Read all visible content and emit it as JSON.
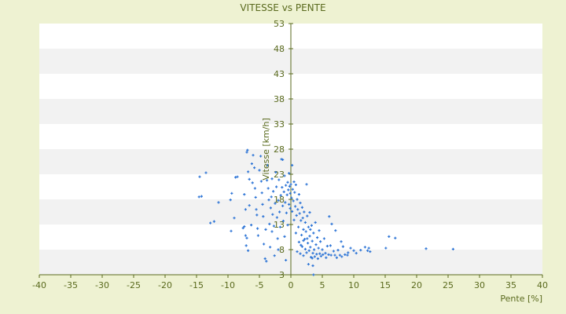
{
  "chart_data": {
    "type": "scatter",
    "title": "VITESSE vs PENTE",
    "xlabel": "Pente [%]",
    "ylabel": "Vitesse [km/h]",
    "xlim": [
      -40,
      40
    ],
    "ylim": [
      3,
      53
    ],
    "xticks": [
      "-40",
      "-35",
      "-30",
      "-25",
      "-20",
      "-15",
      "-10",
      "-5",
      "0",
      "5",
      "10",
      "15",
      "20",
      "25",
      "30",
      "35",
      "40"
    ],
    "yticks": [
      "3",
      "8",
      "13",
      "18",
      "23",
      "28",
      "33",
      "38",
      "43",
      "48",
      "53"
    ],
    "grid": "horizontal bands",
    "legend": "none",
    "colors": {
      "background": "#eef2d2",
      "band_light": "#ffffff",
      "band_dark": "#f2f2f2",
      "axis": "#5a6a1e",
      "marker": "#2e75d6"
    },
    "series": [
      {
        "values": [
          [
            -14.5,
            22.5
          ],
          [
            -13.5,
            23.3
          ],
          [
            -14.6,
            18.5
          ],
          [
            -14.2,
            18.6
          ],
          [
            -12.8,
            13.3
          ],
          [
            -12.2,
            13.6
          ],
          [
            -11.5,
            17.4
          ],
          [
            -9.5,
            11.7
          ],
          [
            -9.6,
            17.9
          ],
          [
            -9.4,
            19.2
          ],
          [
            -9.0,
            14.3
          ],
          [
            -8.8,
            22.4
          ],
          [
            -8.5,
            22.5
          ],
          [
            -7.6,
            12.3
          ],
          [
            -7.4,
            12.6
          ],
          [
            -7.4,
            19.0
          ],
          [
            -7.2,
            16.0
          ],
          [
            -7.2,
            10.8
          ],
          [
            -7.0,
            10.3
          ],
          [
            -7.1,
            8.8
          ],
          [
            -7.0,
            27.4
          ],
          [
            -6.9,
            27.8
          ],
          [
            -6.8,
            23.5
          ],
          [
            -6.6,
            22.0
          ],
          [
            -6.8,
            7.8
          ],
          [
            -6.6,
            16.8
          ],
          [
            -6.3,
            12.9
          ],
          [
            -6.1,
            21.3
          ],
          [
            -6.2,
            25.1
          ],
          [
            -6.0,
            26.8
          ],
          [
            -5.8,
            24.3
          ],
          [
            -5.7,
            20.2
          ],
          [
            -5.6,
            18.4
          ],
          [
            -5.5,
            16.0
          ],
          [
            -5.4,
            14.9
          ],
          [
            -5.3,
            12.2
          ],
          [
            -5.2,
            10.8
          ],
          [
            -5.0,
            23.8
          ],
          [
            -4.8,
            26.6
          ],
          [
            -4.7,
            21.6
          ],
          [
            -4.6,
            19.3
          ],
          [
            -4.5,
            17.0
          ],
          [
            -4.4,
            14.6
          ],
          [
            -4.3,
            9.1
          ],
          [
            -4.1,
            6.2
          ],
          [
            -4.0,
            12.0
          ],
          [
            -3.9,
            5.7
          ],
          [
            -3.8,
            21.8
          ],
          [
            -3.7,
            24.8
          ],
          [
            -3.6,
            20.2
          ],
          [
            -3.5,
            17.9
          ],
          [
            -3.4,
            13.1
          ],
          [
            -3.3,
            8.5
          ],
          [
            -3.2,
            16.3
          ],
          [
            -3.1,
            18.5
          ],
          [
            -3.0,
            22.1
          ],
          [
            -3.0,
            11.6
          ],
          [
            -2.9,
            15.0
          ],
          [
            -2.8,
            19.6
          ],
          [
            -2.7,
            12.7
          ],
          [
            -2.6,
            6.8
          ],
          [
            -2.5,
            17.2
          ],
          [
            -2.4,
            23.4
          ],
          [
            -2.3,
            20.5
          ],
          [
            -2.2,
            14.4
          ],
          [
            -2.1,
            10.2
          ],
          [
            -2.0,
            17.8
          ],
          [
            -2.0,
            8.0
          ],
          [
            -1.9,
            21.9
          ],
          [
            -1.8,
            15.5
          ],
          [
            -1.7,
            12.5
          ],
          [
            -1.6,
            18.8
          ],
          [
            -1.5,
            26.0
          ],
          [
            -1.4,
            20.4
          ],
          [
            -1.3,
            16.7
          ],
          [
            -1.3,
            25.9
          ],
          [
            -1.2,
            13.7
          ],
          [
            -1.1,
            19.5
          ],
          [
            -1.0,
            22.7
          ],
          [
            -1.0,
            10.6
          ],
          [
            -0.9,
            17.4
          ],
          [
            -0.8,
            20.8
          ],
          [
            -0.8,
            5.9
          ],
          [
            -0.7,
            15.3
          ],
          [
            -0.6,
            18.9
          ],
          [
            -0.5,
            21.4
          ],
          [
            -0.5,
            12.9
          ],
          [
            -0.4,
            19.9
          ],
          [
            -0.3,
            17.0
          ],
          [
            -0.3,
            23.2
          ],
          [
            -0.2,
            20.6
          ],
          [
            -0.1,
            16.2
          ],
          [
            -0.1,
            19.2
          ],
          [
            0.0,
            21.0
          ],
          [
            0.1,
            18.3
          ],
          [
            0.2,
            24.8
          ],
          [
            0.2,
            15.6
          ],
          [
            0.3,
            20.0
          ],
          [
            0.4,
            17.7
          ],
          [
            0.5,
            13.9
          ],
          [
            0.5,
            21.5
          ],
          [
            0.6,
            19.4
          ],
          [
            0.7,
            16.6
          ],
          [
            0.8,
            11.3
          ],
          [
            0.8,
            20.9
          ],
          [
            0.9,
            14.8
          ],
          [
            1.0,
            18.0
          ],
          [
            1.0,
            7.6
          ],
          [
            1.1,
            16.0
          ],
          [
            1.2,
            12.5
          ],
          [
            1.3,
            19.0
          ],
          [
            1.3,
            9.5
          ],
          [
            1.4,
            15.2
          ],
          [
            1.5,
            17.3
          ],
          [
            1.5,
            7.2
          ],
          [
            1.6,
            13.8
          ],
          [
            1.7,
            10.9
          ],
          [
            1.8,
            16.4
          ],
          [
            1.8,
            8.6
          ],
          [
            1.9,
            14.3
          ],
          [
            2.0,
            12.0
          ],
          [
            2.0,
            6.8
          ],
          [
            2.1,
            15.5
          ],
          [
            2.2,
            10.1
          ],
          [
            2.3,
            13.4
          ],
          [
            2.3,
            8.1
          ],
          [
            2.4,
            11.6
          ],
          [
            2.5,
            7.4
          ],
          [
            2.5,
            21.0
          ],
          [
            2.6,
            14.7
          ],
          [
            2.7,
            9.3
          ],
          [
            2.8,
            12.5
          ],
          [
            2.8,
            5.1
          ],
          [
            2.9,
            7.8
          ],
          [
            3.0,
            10.7
          ],
          [
            3.0,
            15.4
          ],
          [
            3.1,
            8.5
          ],
          [
            3.2,
            6.5
          ],
          [
            3.3,
            12.8
          ],
          [
            3.4,
            9.7
          ],
          [
            3.5,
            7.3
          ],
          [
            3.5,
            4.8
          ],
          [
            3.6,
            11.3
          ],
          [
            3.7,
            8.0
          ],
          [
            3.8,
            6.6
          ],
          [
            3.9,
            13.4
          ],
          [
            4.0,
            9.0
          ],
          [
            4.1,
            7.1
          ],
          [
            4.2,
            10.4
          ],
          [
            4.3,
            6.2
          ],
          [
            4.4,
            8.3
          ],
          [
            4.5,
            11.8
          ],
          [
            4.6,
            7.2
          ],
          [
            4.7,
            9.6
          ],
          [
            4.8,
            6.7
          ],
          [
            5.0,
            8.0
          ],
          [
            5.1,
            7.0
          ],
          [
            5.3,
            10.2
          ],
          [
            5.5,
            7.3
          ],
          [
            5.6,
            6.4
          ],
          [
            5.8,
            8.7
          ],
          [
            6.0,
            7.0
          ],
          [
            6.1,
            14.6
          ],
          [
            6.3,
            8.8
          ],
          [
            6.4,
            6.9
          ],
          [
            6.5,
            13.1
          ],
          [
            6.8,
            7.7
          ],
          [
            7.0,
            6.9
          ],
          [
            7.1,
            11.8
          ],
          [
            7.3,
            6.4
          ],
          [
            7.5,
            7.9
          ],
          [
            7.8,
            6.9
          ],
          [
            8.0,
            9.6
          ],
          [
            8.1,
            6.6
          ],
          [
            8.3,
            8.6
          ],
          [
            8.6,
            7.0
          ],
          [
            9.0,
            6.9
          ],
          [
            9.1,
            7.4
          ],
          [
            9.5,
            8.3
          ],
          [
            10.0,
            7.8
          ],
          [
            10.4,
            7.3
          ],
          [
            11.1,
            7.9
          ],
          [
            11.8,
            8.5
          ],
          [
            12.2,
            7.8
          ],
          [
            12.4,
            8.3
          ],
          [
            12.6,
            7.6
          ],
          [
            15.1,
            8.3
          ],
          [
            15.6,
            10.6
          ],
          [
            16.6,
            10.3
          ],
          [
            21.5,
            8.2
          ],
          [
            25.8,
            8.1
          ],
          [
            3.6,
            3.0
          ],
          [
            3.4,
            6.3
          ],
          [
            1.6,
            8.9
          ],
          [
            2.0,
            9.8
          ],
          [
            2.6,
            10.2
          ],
          [
            3.1,
            12.0
          ]
        ]
      }
    ]
  }
}
